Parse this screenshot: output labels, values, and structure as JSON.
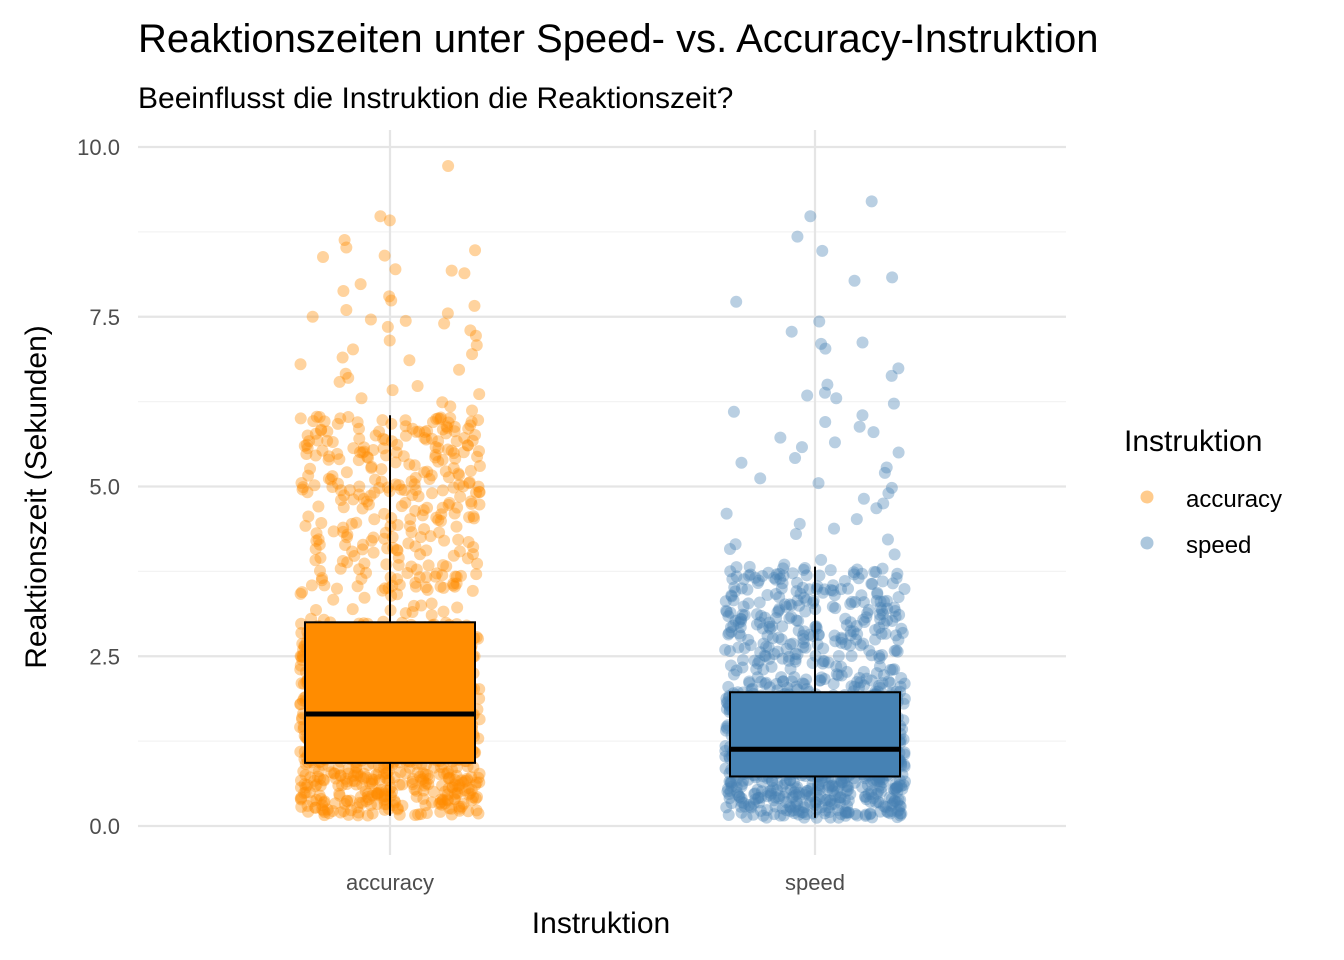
{
  "chart_data": {
    "type": "boxplot-with-jitter",
    "title": "Reaktionszeiten unter Speed- vs. Accuracy-Instruktion",
    "subtitle": "Beeinflusst die Instruktion die Reaktionszeit?",
    "xlabel": "Instruktion",
    "ylabel": "Reaktionszeit (Sekunden)",
    "ylim": [
      0,
      10
    ],
    "y_ticks": [
      {
        "value": 0,
        "label": "0.0"
      },
      {
        "value": 2.5,
        "label": "2.5"
      },
      {
        "value": 5,
        "label": "5.0"
      },
      {
        "value": 7.5,
        "label": "7.5"
      },
      {
        "value": 10,
        "label": "10.0"
      }
    ],
    "categories": [
      "accuracy",
      "speed"
    ],
    "grid": true,
    "legend": {
      "title": "Instruktion",
      "position": "right",
      "entries": [
        {
          "label": "accuracy",
          "color": "#FF8C00"
        },
        {
          "label": "speed",
          "color": "#4682B4"
        }
      ]
    },
    "series": [
      {
        "name": "accuracy",
        "color": "#FF8C00",
        "box": {
          "whisker_low": 0.15,
          "q1": 0.93,
          "median": 1.65,
          "q3": 3.0,
          "whisker_high": 6.05
        },
        "outliers": [
          9.72,
          8.98,
          8.92,
          8.63,
          8.52,
          8.48,
          8.4,
          8.38,
          8.2,
          8.18,
          8.14,
          7.98,
          7.88,
          7.8,
          7.74,
          7.66,
          7.6,
          7.55,
          7.5,
          7.46,
          7.44,
          7.4,
          7.35,
          7.3,
          7.22,
          7.15,
          7.08,
          7.02,
          6.95,
          6.9,
          6.86,
          6.8,
          6.72,
          6.66,
          6.6,
          6.54,
          6.48,
          6.42,
          6.36,
          6.3,
          6.24,
          6.18,
          6.12
        ]
      },
      {
        "name": "speed",
        "color": "#4682B4",
        "box": {
          "whisker_low": 0.12,
          "q1": 0.73,
          "median": 1.13,
          "q3": 1.97,
          "whisker_high": 3.82
        },
        "outliers": [
          9.2,
          8.98,
          8.68,
          8.47,
          8.08,
          8.03,
          7.72,
          7.43,
          7.28,
          7.12,
          7.1,
          7.03,
          6.74,
          6.63,
          6.5,
          6.38,
          6.34,
          6.3,
          6.22,
          6.1,
          6.05,
          5.95,
          5.88,
          5.8,
          5.72,
          5.65,
          5.58,
          5.5,
          5.42,
          5.35,
          5.28,
          5.2,
          5.12,
          5.05,
          4.98,
          4.9,
          4.82,
          4.75,
          4.68,
          4.6,
          4.52,
          4.45,
          4.38,
          4.3,
          4.22,
          4.15,
          4.08,
          4.0,
          3.92,
          3.85
        ]
      }
    ]
  }
}
